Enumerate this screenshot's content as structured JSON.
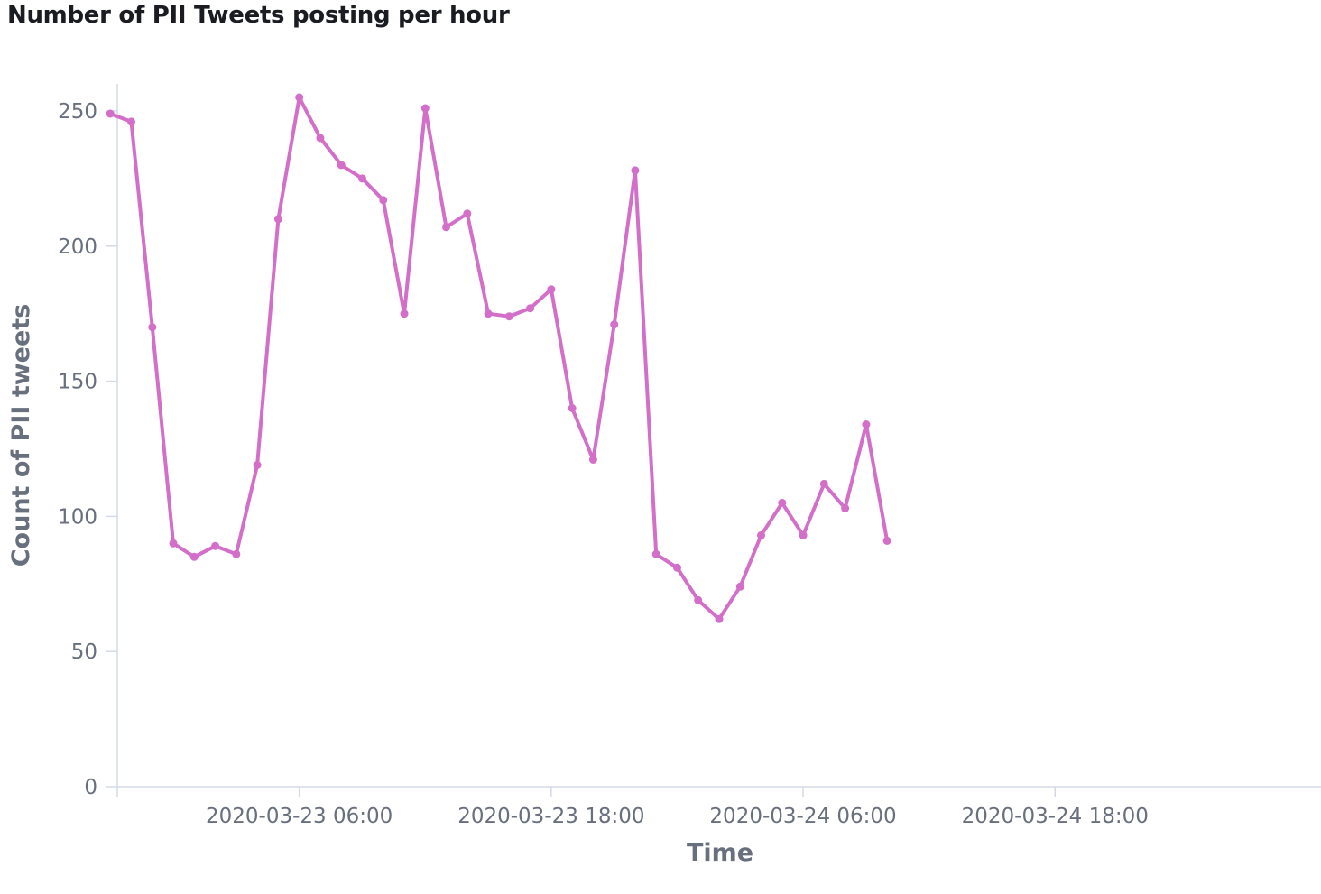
{
  "panel": {
    "title": "Number of PII Tweets posting per hour"
  },
  "chart_data": {
    "type": "line",
    "title": "Number of PII Tweets posting per hour",
    "xlabel": "Time",
    "ylabel": "Count of PII tweets",
    "x_start": "2020-03-22 21:00",
    "x_unit": "hour",
    "xlim": [
      "2020-03-22 21:20",
      "2020-03-25 06:40"
    ],
    "ylim": [
      0,
      260
    ],
    "y_ticks": [
      0,
      50,
      100,
      150,
      200,
      250
    ],
    "x_ticks": [
      "2020-03-23 06:00",
      "2020-03-23 18:00",
      "2020-03-24 06:00",
      "2020-03-24 18:00"
    ],
    "grid": false,
    "legend": "none",
    "series": [
      {
        "color": "#d36fc9",
        "values": [
          249,
          246,
          170,
          90,
          85,
          89,
          86,
          119,
          210,
          255,
          240,
          230,
          225,
          217,
          175,
          251,
          207,
          212,
          175,
          174,
          177,
          184,
          140,
          121,
          171,
          228,
          86,
          81,
          69,
          62,
          74,
          93,
          105,
          93,
          112,
          103,
          134,
          91
        ]
      }
    ]
  }
}
